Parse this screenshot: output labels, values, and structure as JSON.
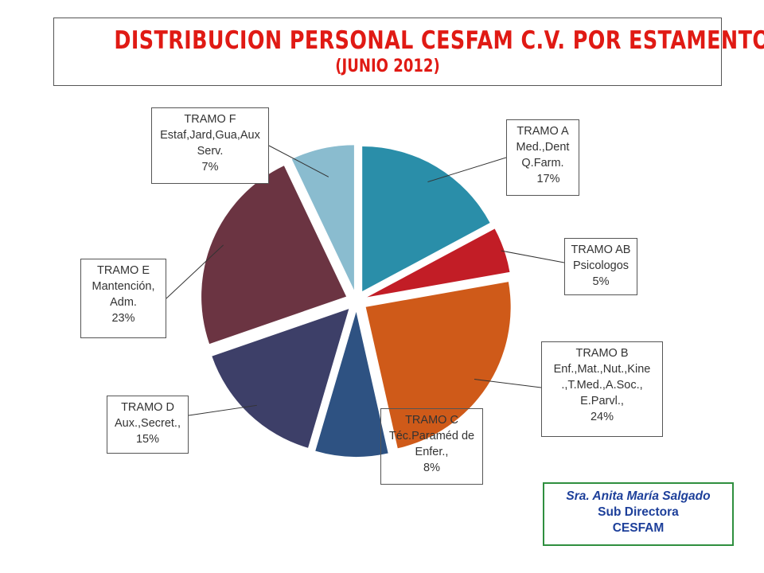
{
  "title": {
    "main": "DISTRIBUCION  PERSONAL CESFAM C.V. POR  ESTAMENTO",
    "sub": "(JUNIO 2012)"
  },
  "colors": {
    "title": "#e01a14",
    "tramo_a": "#2a8ea9",
    "tramo_ab": "#c21d26",
    "tramo_b": "#cf5a19",
    "tramo_c": "#2e5282",
    "tramo_d": "#3d3f68",
    "tramo_e": "#6b3442",
    "tramo_f": "#8abccf",
    "signature_text": "#1d3f9a",
    "signature_border": "#2f8f3f"
  },
  "chart_data": {
    "type": "pie",
    "exploded": true,
    "start_angle_deg": 90,
    "direction": "clockwise",
    "slices": [
      {
        "key": "tramo_a",
        "lines": [
          "TRAMO  A",
          "Med.,Dent",
          "Q.Farm.",
          "17%"
        ],
        "value": 17
      },
      {
        "key": "tramo_ab",
        "lines": [
          "TRAMO AB",
          "Psicologos",
          "5%"
        ],
        "value": 5
      },
      {
        "key": "tramo_b",
        "lines": [
          "TRAMO B",
          "Enf.,Mat.,Nut.,Kine",
          ".,T.Med.,A.Soc.,",
          "E.Parvl.,",
          "24%"
        ],
        "value": 24
      },
      {
        "key": "tramo_c",
        "lines": [
          "TRAMO C",
          "Téc.Paraméd de",
          "Enfer.,",
          "8%"
        ],
        "value": 8
      },
      {
        "key": "tramo_d",
        "lines": [
          "TRAMO D",
          "Aux.,Secret.,",
          "15%"
        ],
        "value": 15
      },
      {
        "key": "tramo_e",
        "lines": [
          "TRAMO E",
          "Mantención,",
          "Adm.",
          "23%"
        ],
        "value": 23
      },
      {
        "key": "tramo_f",
        "lines": [
          "TRAMO F",
          "Estaf,Jard,Gua,Aux",
          "Serv.",
          "7%"
        ],
        "value": 7
      }
    ]
  },
  "signature": {
    "name": "Sra. Anita María Salgado",
    "role": "Sub Directora",
    "org": "CESFAM"
  }
}
